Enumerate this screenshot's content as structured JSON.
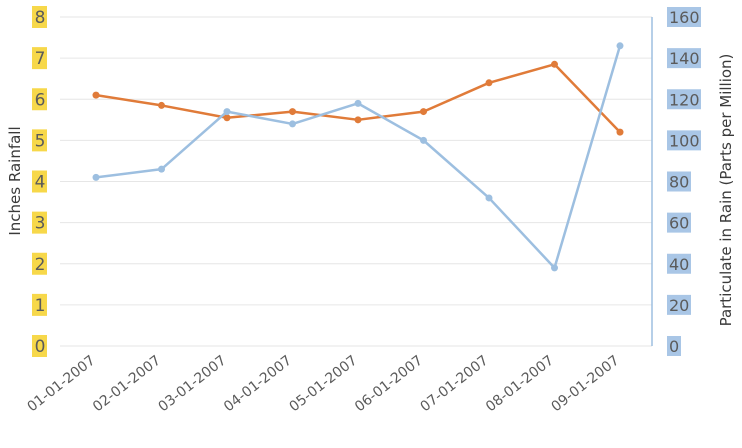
{
  "chart_data": {
    "type": "line",
    "categories": [
      "01-01-2007",
      "02-01-2007",
      "03-01-2007",
      "04-01-2007",
      "05-01-2007",
      "06-01-2007",
      "07-01-2007",
      "08-01-2007",
      "09-01-2007"
    ],
    "series": [
      {
        "axis": "left",
        "color": "#e07b39",
        "values": [
          6.1,
          5.85,
          5.55,
          5.7,
          5.5,
          5.7,
          6.4,
          6.85,
          5.2
        ]
      },
      {
        "axis": "right",
        "color": "#9dbfe0",
        "values": [
          82,
          86,
          114,
          108,
          118,
          100,
          72,
          38,
          146
        ]
      }
    ],
    "ylabel": "Inches Rainfall",
    "y2label": "Particulate in Rain (Parts per Million)",
    "ylim": [
      0,
      8
    ],
    "y2lim": [
      0,
      160
    ],
    "yticks": [
      "0",
      "1",
      "2",
      "3",
      "4",
      "5",
      "6",
      "7",
      "8"
    ],
    "y2ticks": [
      "0",
      "20",
      "40",
      "60",
      "80",
      "100",
      "120",
      "140",
      "160"
    ],
    "left_tick_bg": "#f7d84a",
    "right_tick_bg": "#a9c6e6",
    "grid": true,
    "legend": "none"
  }
}
